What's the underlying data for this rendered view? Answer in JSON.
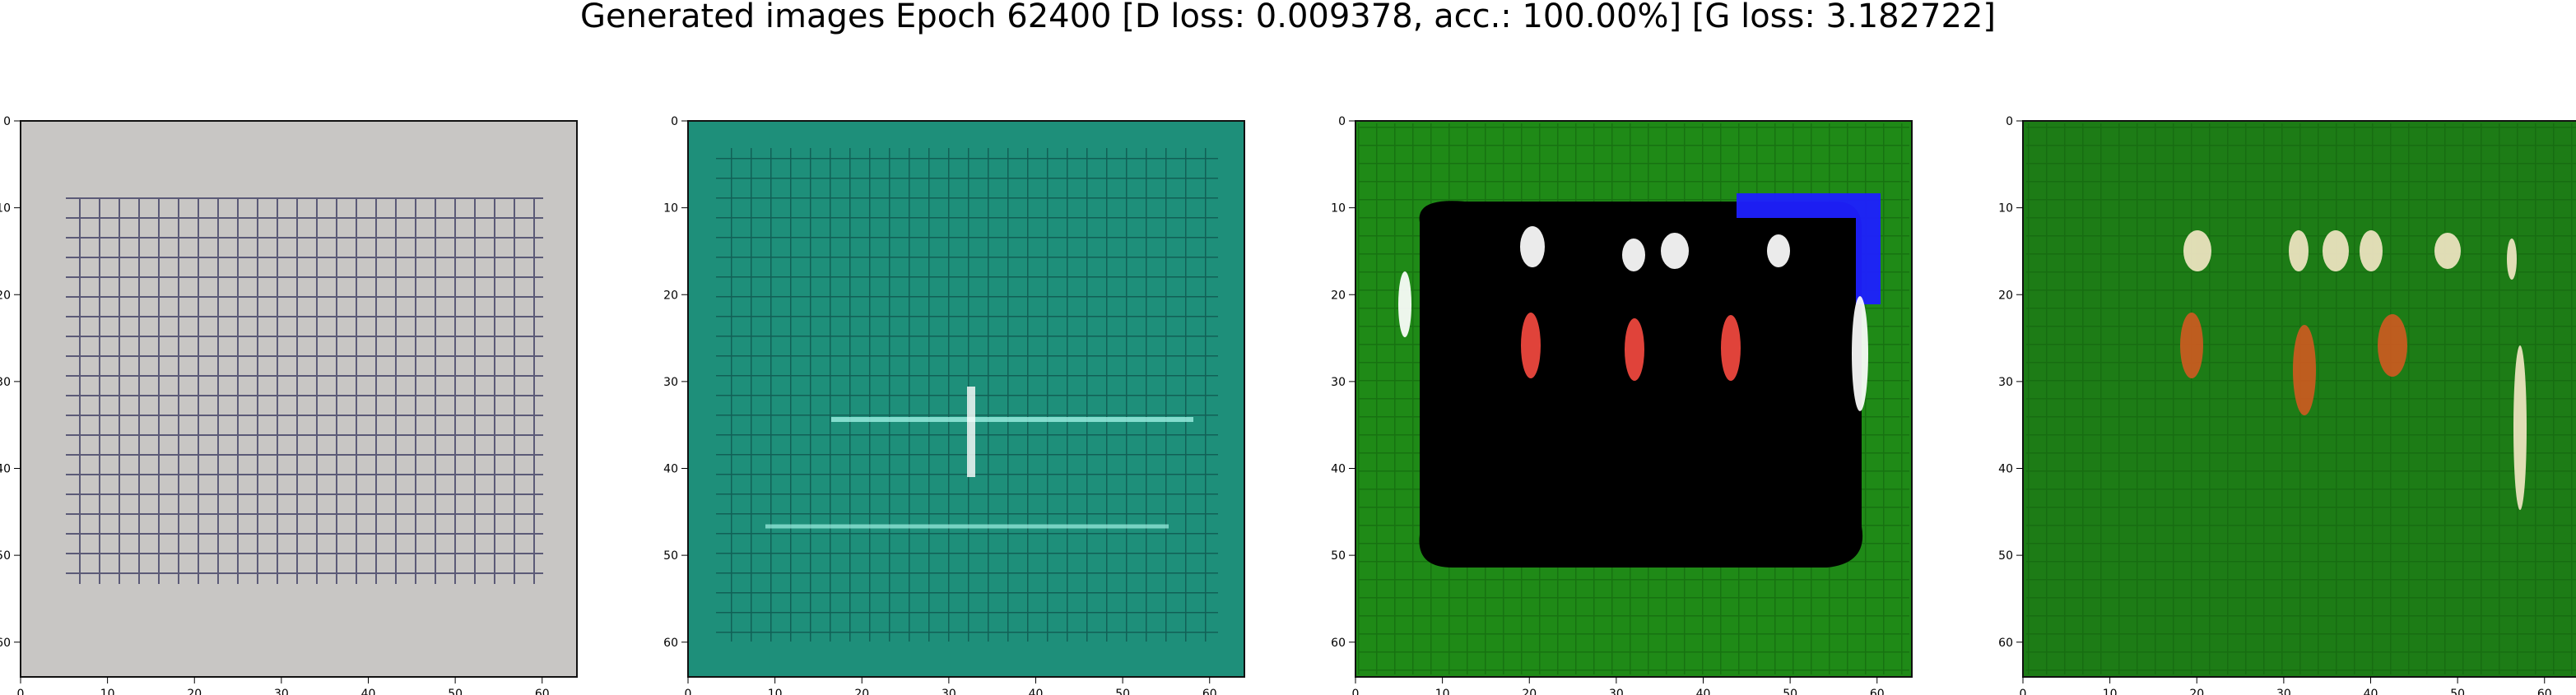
{
  "figure": {
    "title": "Generated images Epoch 62400 [D loss: 0.009378, acc.: 100.00%] [G loss: 3.182722]"
  },
  "axes": {
    "x_ticks": [
      0,
      10,
      20,
      30,
      40,
      50,
      60
    ],
    "y_ticks": [
      0,
      10,
      20,
      30,
      40,
      50,
      60
    ],
    "range": [
      0,
      64
    ]
  },
  "panels": [
    {
      "name": "generated-image-1",
      "background": "#c8c6c4",
      "grid_color": "#2a2a55",
      "accent": "#f0f0f0",
      "description_colors": [
        "#c8c6c4",
        "#2a2a55",
        "#f0f0f0"
      ]
    },
    {
      "name": "generated-image-2",
      "background": "#1e8f7a",
      "grid_color": "#0f5b52",
      "accent": "#9ef0e2",
      "description_colors": [
        "#1e8f7a",
        "#0f5b52",
        "#9ef0e2"
      ]
    },
    {
      "name": "generated-image-3",
      "background": "#1f8a17",
      "grid_color": "#0f5a0b",
      "accent": "#000000",
      "description_colors": [
        "#1f8a17",
        "#000000",
        "#ffffff",
        "#e0433a",
        "#1e20ff"
      ]
    },
    {
      "name": "generated-image-4",
      "background": "#1d7c16",
      "grid_color": "#0c480a",
      "accent": "#f1e6c3",
      "description_colors": [
        "#1d7c16",
        "#f1e6c3",
        "#d05a20"
      ]
    }
  ]
}
